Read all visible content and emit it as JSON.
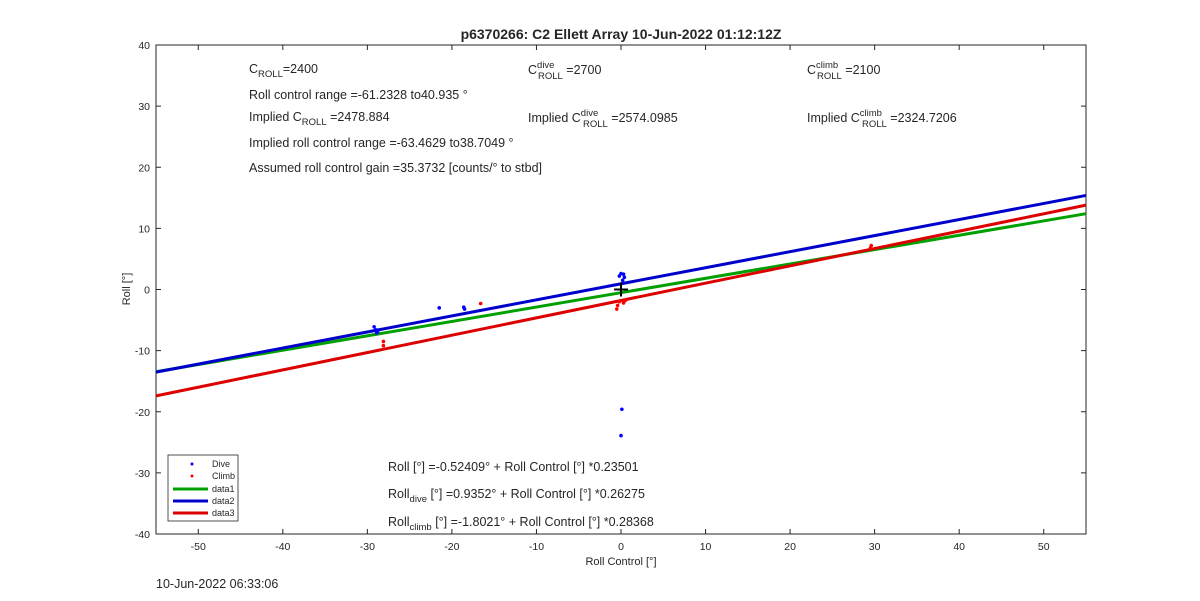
{
  "chart_data": {
    "type": "scatter",
    "title": "p6370266: C2 Ellett Array 10-Jun-2022 01:12:12Z",
    "xlabel": "Roll Control [°]",
    "ylabel": "Roll [°]",
    "xlim": [
      -55,
      55
    ],
    "ylim": [
      -40,
      40
    ],
    "xticks": [
      -50,
      -40,
      -30,
      -20,
      -10,
      0,
      10,
      20,
      30,
      40,
      50
    ],
    "yticks": [
      -40,
      -30,
      -20,
      -10,
      0,
      10,
      20,
      30,
      40
    ],
    "grid": false,
    "legend_position": "bottom-left",
    "series": [
      {
        "name": "Dive",
        "kind": "points",
        "color": "#0000ff",
        "points": [
          [
            -29.2,
            -6.1
          ],
          [
            -29.0,
            -6.6
          ],
          [
            -28.8,
            -6.9
          ],
          [
            -28.9,
            -7.1
          ],
          [
            -21.5,
            -3.0
          ],
          [
            -18.6,
            -2.9
          ],
          [
            -18.5,
            -3.2
          ],
          [
            0.0,
            2.6
          ],
          [
            -0.2,
            2.2
          ],
          [
            0.3,
            2.5
          ],
          [
            0.4,
            2.0
          ],
          [
            0.2,
            1.5
          ],
          [
            0.1,
            -19.6
          ],
          [
            0.0,
            -23.9
          ]
        ]
      },
      {
        "name": "Climb",
        "kind": "points",
        "color": "#ff0000",
        "points": [
          [
            -28.1,
            -8.5
          ],
          [
            -28.1,
            -9.2
          ],
          [
            -16.6,
            -2.3
          ],
          [
            -0.2,
            -2.0
          ],
          [
            -0.4,
            -2.6
          ],
          [
            -0.5,
            -3.2
          ],
          [
            0.3,
            -2.2
          ],
          [
            0.5,
            -1.8
          ],
          [
            29.5,
            6.8
          ],
          [
            29.6,
            7.2
          ]
        ]
      },
      {
        "name": "data1",
        "kind": "line",
        "color": "#00a000",
        "slope": 0.23501,
        "intercept": -0.52409
      },
      {
        "name": "data2",
        "kind": "line",
        "color": "#0000cc",
        "slope": 0.26275,
        "intercept": 0.9352
      },
      {
        "name": "data3",
        "kind": "line",
        "color": "#dd0000",
        "slope": 0.28368,
        "intercept": -1.8021
      }
    ],
    "center_marker": [
      0,
      0
    ]
  },
  "annotations": {
    "c_roll": {
      "prefix": "C",
      "sub": "ROLL",
      "value": "=2400"
    },
    "roll_range": "Roll control range =-61.2328 to40.935 °",
    "implied_c_roll": {
      "prefix": "Implied C",
      "sub": "ROLL",
      "value": " =2478.884"
    },
    "implied_range": "Implied roll control range =-63.4629 to38.7049 °",
    "gain": "Assumed roll control gain =35.3732 [counts/° to stbd]",
    "c_dive": {
      "prefix": "C",
      "sup": "dive",
      "sub": "ROLL",
      "value": " =2700"
    },
    "implied_c_dive": {
      "prefix": "Implied C",
      "sup": "dive",
      "sub": "ROLL",
      "value": " =2574.0985"
    },
    "c_climb": {
      "prefix": "C",
      "sup": "climb",
      "sub": "ROLL",
      "value": " =2100"
    },
    "implied_c_climb": {
      "prefix": "Implied C",
      "sup": "climb",
      "sub": "ROLL",
      "value": " =2324.7206"
    },
    "fit_all": "Roll [°] =-0.52409° + Roll Control [°] *0.23501",
    "fit_dive": {
      "prefix": "Roll",
      "sub": "dive",
      "value": " [°] =0.9352° + Roll Control [°] *0.26275"
    },
    "fit_climb": {
      "prefix": "Roll",
      "sub": "climb",
      "value": " [°] =-1.8021° + Roll Control [°] *0.28368"
    }
  },
  "footer_timestamp": "10-Jun-2022 06:33:06"
}
